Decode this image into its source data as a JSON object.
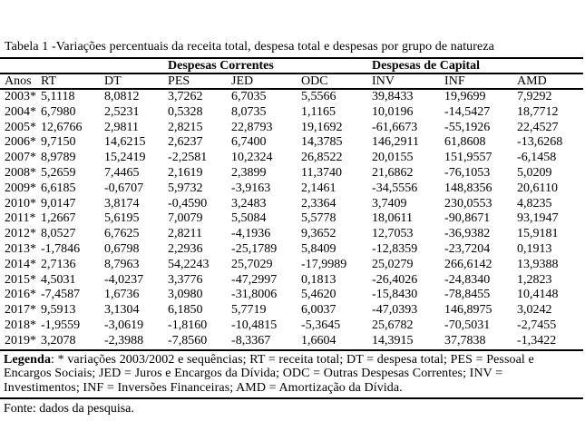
{
  "title": "Tabela 1 -Variações percentuais da receita total, despesa total e despesas por grupo de natureza",
  "table": {
    "group_headers": [
      {
        "label": "",
        "span": 3
      },
      {
        "label": "Despesas Correntes",
        "span": 3
      },
      {
        "label": "Despesas de Capital",
        "span": 3
      }
    ],
    "columns": [
      "Anos",
      "RT",
      "DT",
      "PES",
      "JED",
      "ODC",
      "INV",
      "INF",
      "AMD"
    ],
    "rows": [
      [
        "2003*",
        "5,1118",
        "8,0812",
        "3,7262",
        "6,7035",
        "5,5566",
        "39,8433",
        "19,9699",
        "7,9292"
      ],
      [
        "2004*",
        "6,7980",
        "2,5231",
        "0,5328",
        "8,0735",
        "1,1165",
        "10,0196",
        "-14,5427",
        "18,7712"
      ],
      [
        "2005*",
        "12,6766",
        "2,9811",
        "2,8215",
        "22,8793",
        "19,1692",
        "-61,6673",
        "-55,1926",
        "22,4527"
      ],
      [
        "2006*",
        "9,7150",
        "14,6215",
        "2,6237",
        "6,7400",
        "14,3785",
        "146,2911",
        "61,8608",
        "-13,6268"
      ],
      [
        "2007*",
        "8,9789",
        "15,2419",
        "-2,2581",
        "10,2324",
        "26,8522",
        "20,0155",
        "151,9557",
        "-6,1458"
      ],
      [
        "2008*",
        "5,2659",
        "7,4465",
        "2,1619",
        "2,3899",
        "11,3740",
        "21,6862",
        "-76,1053",
        "5,0209"
      ],
      [
        "2009*",
        "6,6185",
        "-0,6707",
        "5,9732",
        "-3,9163",
        "2,1461",
        "-34,5556",
        "148,8356",
        "20,6110"
      ],
      [
        "2010*",
        "9,0147",
        "3,8174",
        "-0,4590",
        "3,2483",
        "2,3364",
        "3,7409",
        "230,0553",
        "4,8235"
      ],
      [
        "2011*",
        "1,2667",
        "5,6195",
        "7,0079",
        "5,5084",
        "5,5778",
        "18,0611",
        "-90,8671",
        "93,1947"
      ],
      [
        "2012*",
        "8,0527",
        "6,7625",
        "2,8211",
        "-4,1936",
        "9,3652",
        "12,7053",
        "-36,9382",
        "15,9181"
      ],
      [
        "2013*",
        "-1,7846",
        "0,6798",
        "2,2936",
        "-25,1789",
        "5,8409",
        "-12,8359",
        "-23,7204",
        "0,1913"
      ],
      [
        "2014*",
        "2,7136",
        "8,7963",
        "54,2243",
        "25,7029",
        "-17,9989",
        "25,0279",
        "266,6142",
        "13,9388"
      ],
      [
        "2015*",
        "4,5031",
        "-4,0237",
        "3,3776",
        "-47,2997",
        "0,1813",
        "-26,4026",
        "-24,8340",
        "1,2823"
      ],
      [
        "2016*",
        "-7,4587",
        "1,6736",
        "3,0980",
        "-31,8006",
        "5,4620",
        "-15,8430",
        "-78,8455",
        "10,4148"
      ],
      [
        "2017*",
        "9,5913",
        "3,1304",
        "6,1850",
        "5,7719",
        "6,0037",
        "-47,0393",
        "146,8975",
        "3,0242"
      ],
      [
        "2018*",
        "-1,9559",
        "-3,0619",
        "-1,8160",
        "-10,4815",
        "-5,3645",
        "25,6782",
        "-70,5031",
        "-2,7455"
      ],
      [
        "2019*",
        "3,2078",
        "-2,3988",
        "-7,8560",
        "-8,3367",
        "1,6604",
        "14,3915",
        "37,7838",
        "-1,3422"
      ]
    ]
  },
  "legend": {
    "label": "Legenda",
    "text": ": * variações 2003/2002 e sequências; RT = receita total; DT = despesa total; PES = Pessoal e Encargos Sociais; JED = Juros e Encargos da Dívida; ODC = Outras Despesas Correntes; INV = Investimentos; INF = Inversões Financeiras; AMD = Amortização da Dívida."
  },
  "source": "Fonte: dados da pesquisa."
}
